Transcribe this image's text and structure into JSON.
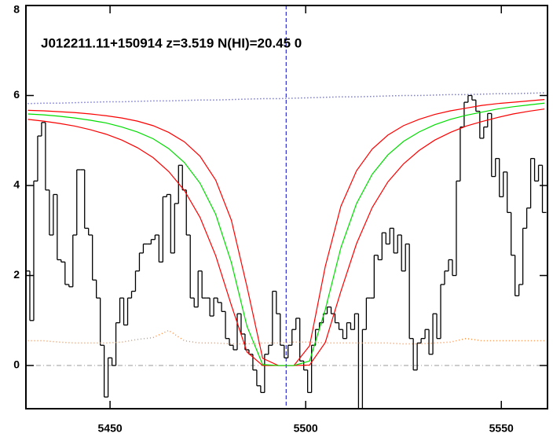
{
  "chart_data": {
    "type": "spectrum",
    "annotation": "J012211.11+150914 z=3.519 N(HI)=20.45 0",
    "xlim": [
      5428.5,
      5561.8
    ],
    "ylim": [
      -0.96,
      8
    ],
    "xticks": [
      5450,
      5500,
      5550
    ],
    "yticks": [
      0,
      2,
      4,
      6,
      8
    ],
    "vline": 5495,
    "vline_color": "#0000cc",
    "hline": 0,
    "hline_color": "#999999",
    "series": [
      {
        "style": "step",
        "color": "#000000",
        "x": [
          5429,
          5430,
          5431,
          5432,
          5433,
          5434,
          5435,
          5436,
          5437,
          5438,
          5439,
          5440,
          5441,
          5442,
          5443,
          5444,
          5445,
          5446,
          5447,
          5448,
          5449,
          5450,
          5451,
          5452,
          5453,
          5454,
          5455,
          5456,
          5457,
          5458,
          5459,
          5460,
          5461,
          5462,
          5463,
          5464,
          5465,
          5466,
          5467,
          5468,
          5469,
          5470,
          5471,
          5472,
          5473,
          5474,
          5475,
          5476,
          5477,
          5478,
          5479,
          5480,
          5481,
          5482,
          5483,
          5484,
          5485,
          5486,
          5487,
          5488,
          5489,
          5490,
          5491,
          5492,
          5493,
          5494,
          5495,
          5496,
          5497,
          5498,
          5499,
          5500,
          5501,
          5502,
          5503,
          5504,
          5505,
          5506,
          5507,
          5508,
          5509,
          5510,
          5511,
          5512,
          5513,
          5514,
          5515,
          5516,
          5517,
          5518,
          5519,
          5520,
          5521,
          5522,
          5523,
          5524,
          5525,
          5526,
          5527,
          5528,
          5529,
          5530,
          5531,
          5532,
          5533,
          5534,
          5535,
          5536,
          5537,
          5538,
          5539,
          5540,
          5541,
          5542,
          5543,
          5544,
          5545,
          5546,
          5547,
          5548,
          5549,
          5550,
          5551,
          5552,
          5553,
          5554,
          5555,
          5556,
          5557,
          5558,
          5559,
          5560,
          5561
        ],
        "values": [
          2.1,
          1.0,
          4.1,
          5.1,
          5.4,
          3.9,
          2.9,
          3.8,
          2.35,
          2.3,
          1.8,
          1.75,
          2.9,
          4.35,
          4.35,
          3.05,
          2.9,
          1.9,
          1.5,
          0.45,
          -0.7,
          0.17,
          0.0,
          0.95,
          1.5,
          0.9,
          1.5,
          1.65,
          2.1,
          2.5,
          2.7,
          2.7,
          2.8,
          2.9,
          2.3,
          3.75,
          3.8,
          2.5,
          3.6,
          4.45,
          3.9,
          2.9,
          1.5,
          1.3,
          2.1,
          1.5,
          1.5,
          1.1,
          1.5,
          1.4,
          1.2,
          0.6,
          0.45,
          0.35,
          1.15,
          0.7,
          0.35,
          0.25,
          -0.1,
          -0.45,
          -0.6,
          0.25,
          0.45,
          1.65,
          1.15,
          0.45,
          0.17,
          0.45,
          0.8,
          1.05,
          0.1,
          -0.1,
          -0.6,
          0.45,
          0.8,
          0.95,
          1.15,
          1.3,
          1.15,
          0.95,
          0.8,
          0.6,
          0.95,
          0.8,
          1.15,
          -0.96,
          0.8,
          1.5,
          1.5,
          2.45,
          2.35,
          2.95,
          2.7,
          3.05,
          2.5,
          2.9,
          2.1,
          2.7,
          0.6,
          -0.1,
          0.5,
          0.6,
          0.8,
          0.25,
          1.15,
          0.6,
          1.8,
          2.1,
          2.35,
          2.0,
          4.1,
          5.3,
          5.85,
          6.0,
          5.9,
          5.65,
          5.05,
          5.3,
          5.6,
          4.2,
          4.6,
          3.75,
          4.3,
          3.4,
          2.45,
          1.55,
          1.8,
          3.05,
          3.5,
          4.6,
          4.1,
          4.45,
          3.4
        ]
      },
      {
        "style": "dotted",
        "color": "#3333ff",
        "x": [
          5429,
          5433,
          5437,
          5441,
          5445,
          5449,
          5453,
          5457,
          5461,
          5465,
          5469,
          5473,
          5477,
          5481,
          5485,
          5489,
          5493,
          5497,
          5501,
          5505,
          5509,
          5513,
          5517,
          5521,
          5525,
          5529,
          5533,
          5537,
          5541,
          5545,
          5549,
          5553,
          5557,
          5561
        ],
        "values": [
          5.82,
          5.83,
          5.83,
          5.84,
          5.85,
          5.86,
          5.86,
          5.87,
          5.88,
          5.88,
          5.89,
          5.9,
          5.9,
          5.91,
          5.92,
          5.93,
          5.93,
          5.94,
          5.95,
          5.96,
          5.97,
          5.97,
          5.98,
          5.99,
          6.0,
          6.0,
          6.01,
          6.02,
          6.02,
          6.03,
          6.04,
          6.04,
          6.05,
          6.06
        ]
      },
      {
        "style": "dotted",
        "color": "#ff8c3c",
        "x": [
          5429,
          5433,
          5437,
          5441,
          5445,
          5449,
          5453,
          5457,
          5461,
          5465,
          5469,
          5473,
          5477,
          5481,
          5485,
          5489,
          5493,
          5497,
          5501,
          5505,
          5509,
          5513,
          5517,
          5521,
          5525,
          5529,
          5533,
          5537,
          5541,
          5545,
          5549,
          5553,
          5557,
          5561
        ],
        "values": [
          0.55,
          0.55,
          0.52,
          0.5,
          0.5,
          0.5,
          0.52,
          0.58,
          0.62,
          0.78,
          0.55,
          0.5,
          0.5,
          0.48,
          0.48,
          0.5,
          0.5,
          0.52,
          0.52,
          0.5,
          0.5,
          0.5,
          0.5,
          0.5,
          0.48,
          0.48,
          0.5,
          0.52,
          0.6,
          0.55,
          0.55,
          0.55,
          0.55,
          0.55
        ]
      },
      {
        "style": "solid",
        "color": "#ff0000",
        "x": [
          5429,
          5433,
          5437,
          5441,
          5445,
          5449,
          5453,
          5457,
          5461,
          5465,
          5469,
          5473,
          5477,
          5481,
          5485,
          5489,
          5493,
          5497,
          5501,
          5505,
          5509,
          5513,
          5517,
          5521,
          5525,
          5529,
          5533,
          5537,
          5541,
          5545,
          5549,
          5553,
          5557,
          5561
        ],
        "values": [
          5.47,
          5.43,
          5.38,
          5.32,
          5.24,
          5.14,
          5.01,
          4.84,
          4.62,
          4.31,
          3.89,
          3.29,
          2.44,
          1.34,
          0.3,
          0,
          0,
          0,
          0.01,
          0.51,
          1.65,
          2.71,
          3.51,
          4.08,
          4.48,
          4.78,
          5.01,
          5.18,
          5.32,
          5.42,
          5.51,
          5.59,
          5.65,
          5.7
        ]
      },
      {
        "style": "solid",
        "color": "#ff0000",
        "x": [
          5429,
          5433,
          5437,
          5441,
          5445,
          5449,
          5453,
          5457,
          5461,
          5465,
          5469,
          5473,
          5477,
          5481,
          5485,
          5489,
          5493,
          5497,
          5501,
          5505,
          5509,
          5513,
          5517,
          5521,
          5525,
          5529,
          5533,
          5537,
          5541,
          5545,
          5549,
          5553,
          5557,
          5561
        ],
        "values": [
          5.67,
          5.66,
          5.64,
          5.62,
          5.59,
          5.55,
          5.5,
          5.43,
          5.33,
          5.18,
          4.97,
          4.65,
          4.12,
          3.23,
          1.75,
          0.16,
          0,
          0,
          0.44,
          2.2,
          3.54,
          4.33,
          4.81,
          5.12,
          5.33,
          5.47,
          5.58,
          5.66,
          5.72,
          5.78,
          5.82,
          5.85,
          5.88,
          5.91
        ]
      },
      {
        "style": "solid",
        "color": "#00dd00",
        "x": [
          5429,
          5433,
          5437,
          5441,
          5445,
          5449,
          5453,
          5457,
          5461,
          5465,
          5469,
          5473,
          5477,
          5481,
          5485,
          5489,
          5493,
          5497,
          5501,
          5505,
          5509,
          5513,
          5517,
          5521,
          5525,
          5529,
          5533,
          5537,
          5541,
          5545,
          5549,
          5553,
          5557,
          5561
        ],
        "values": [
          5.59,
          5.57,
          5.54,
          5.5,
          5.45,
          5.39,
          5.3,
          5.19,
          5.04,
          4.82,
          4.51,
          4.05,
          3.36,
          2.29,
          0.87,
          0.02,
          0,
          0,
          0.1,
          1.24,
          2.62,
          3.6,
          4.25,
          4.68,
          4.98,
          5.19,
          5.35,
          5.47,
          5.56,
          5.63,
          5.7,
          5.75,
          5.79,
          5.83
        ]
      }
    ]
  }
}
